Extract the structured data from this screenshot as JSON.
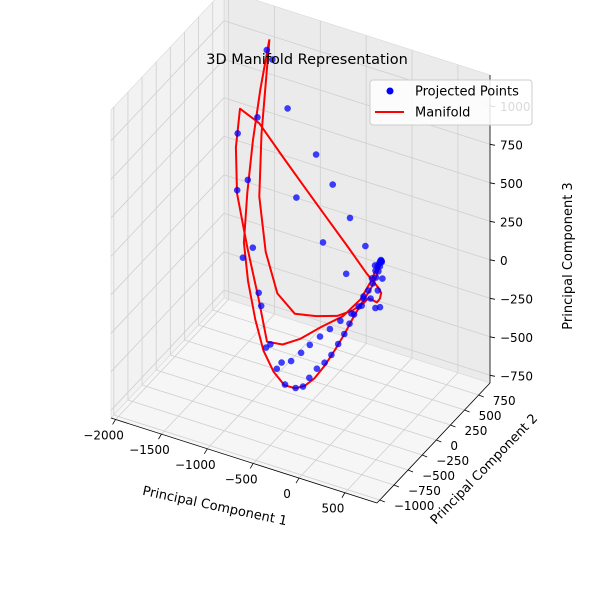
{
  "chart_data": {
    "type": "scatter",
    "projection": "3d",
    "title": "3D Manifold Representation",
    "xlabel": "Principal Component 1",
    "ylabel": "Principal Component 2",
    "zlabel": "Principal Component 3",
    "xlim": [
      -2050,
      850
    ],
    "ylim": [
      -1050,
      950
    ],
    "zlim": [
      -800,
      1200
    ],
    "xticks": [
      "−2000",
      "−1500",
      "−1000",
      "−500",
      "0",
      "500"
    ],
    "xtick_values": [
      -2000,
      -1500,
      -1000,
      -500,
      0,
      500
    ],
    "yticks": [
      "−1000",
      "−750",
      "−500",
      "−250",
      "0",
      "250",
      "500",
      "750"
    ],
    "ytick_values": [
      -1000,
      -750,
      -500,
      -250,
      0,
      250,
      500,
      750
    ],
    "zticks": [
      "−750",
      "−500",
      "−250",
      "0",
      "250",
      "500",
      "750",
      "1000"
    ],
    "ztick_values": [
      -750,
      -500,
      -250,
      0,
      250,
      500,
      750,
      1000
    ],
    "grid": true,
    "legend_position": "top-right",
    "series": [
      {
        "name": "Projected Points",
        "kind": "scatter",
        "color": "#0000ff",
        "points": [
          [
            -1460,
            750,
            1000
          ],
          [
            -1400,
            750,
            950
          ],
          [
            -1470,
            600,
            620
          ],
          [
            -1630,
            510,
            520
          ],
          [
            -1470,
            430,
            280
          ],
          [
            -1480,
            360,
            -200
          ],
          [
            -1290,
            330,
            -380
          ],
          [
            -1160,
            250,
            -680
          ],
          [
            -1000,
            180,
            -760
          ],
          [
            -880,
            130,
            -820
          ],
          [
            -740,
            90,
            -800
          ],
          [
            -640,
            60,
            -760
          ],
          [
            -560,
            40,
            -680
          ],
          [
            -470,
            30,
            -600
          ],
          [
            -380,
            20,
            -540
          ],
          [
            -300,
            10,
            -470
          ],
          [
            -220,
            0,
            -380
          ],
          [
            -150,
            -5,
            -300
          ],
          [
            -90,
            -10,
            -220
          ],
          [
            -40,
            -10,
            -150
          ],
          [
            10,
            -10,
            -90
          ],
          [
            60,
            -5,
            -30
          ],
          [
            110,
            0,
            30
          ],
          [
            150,
            10,
            80
          ],
          [
            180,
            20,
            120
          ],
          [
            200,
            30,
            160
          ],
          [
            210,
            40,
            190
          ],
          [
            215,
            60,
            210
          ],
          [
            205,
            80,
            205
          ],
          [
            190,
            100,
            200
          ],
          [
            175,
            115,
            195
          ],
          [
            160,
            125,
            180
          ],
          [
            145,
            130,
            160
          ],
          [
            130,
            130,
            140
          ],
          [
            110,
            125,
            110
          ],
          [
            80,
            110,
            60
          ],
          [
            -1660,
            550,
            130
          ],
          [
            -1440,
            470,
            -170
          ],
          [
            -1300,
            390,
            -490
          ],
          [
            -1150,
            310,
            -680
          ],
          [
            -960,
            200,
            -720
          ],
          [
            -820,
            140,
            -660
          ],
          [
            -680,
            90,
            -560
          ],
          [
            -560,
            50,
            -470
          ],
          [
            -430,
            20,
            -380
          ],
          [
            -310,
            0,
            -300
          ],
          [
            -190,
            -10,
            -220
          ],
          [
            -70,
            -10,
            -150
          ],
          [
            40,
            -5,
            -80
          ],
          [
            130,
            5,
            -20
          ],
          [
            200,
            20,
            40
          ],
          [
            -1190,
            680,
            700
          ],
          [
            -830,
            600,
            500
          ],
          [
            -600,
            520,
            380
          ],
          [
            -350,
            420,
            250
          ],
          [
            -120,
            320,
            150
          ],
          [
            40,
            230,
            90
          ],
          [
            170,
            150,
            60
          ],
          [
            -1020,
            560,
            200
          ],
          [
            -650,
            430,
            30
          ],
          [
            -330,
            320,
            -70
          ],
          [
            -80,
            220,
            -130
          ],
          [
            100,
            140,
            -140
          ],
          [
            180,
            90,
            -100
          ]
        ]
      },
      {
        "name": "Manifold",
        "kind": "line",
        "color": "#ff0000",
        "points": [
          [
            -1450,
            780,
            1060
          ],
          [
            -1470,
            650,
            780
          ],
          [
            -1470,
            520,
            500
          ],
          [
            -1470,
            420,
            200
          ],
          [
            -1470,
            360,
            -100
          ],
          [
            -1400,
            320,
            -320
          ],
          [
            -1290,
            270,
            -530
          ],
          [
            -1170,
            220,
            -690
          ],
          [
            -1030,
            170,
            -780
          ],
          [
            -880,
            120,
            -820
          ],
          [
            -740,
            85,
            -800
          ],
          [
            -620,
            55,
            -750
          ],
          [
            -500,
            35,
            -670
          ],
          [
            -380,
            20,
            -560
          ],
          [
            -260,
            5,
            -430
          ],
          [
            -140,
            -5,
            -290
          ],
          [
            -40,
            -10,
            -160
          ],
          [
            50,
            -5,
            -50
          ],
          [
            130,
            5,
            40
          ],
          [
            180,
            20,
            120
          ],
          [
            205,
            45,
            190
          ],
          [
            210,
            75,
            210
          ],
          [
            190,
            105,
            200
          ],
          [
            160,
            125,
            175
          ],
          [
            120,
            130,
            130
          ],
          [
            70,
            110,
            40
          ],
          [
            -20,
            70,
            -80
          ],
          [
            -180,
            20,
            -200
          ],
          [
            -400,
            -10,
            -300
          ],
          [
            -650,
            30,
            -440
          ],
          [
            -900,
            120,
            -560
          ],
          [
            -1150,
            250,
            -640
          ],
          [
            -1320,
            380,
            -450
          ],
          [
            -1500,
            470,
            -180
          ],
          [
            -1650,
            530,
            120
          ],
          [
            -1680,
            560,
            400
          ],
          [
            -1660,
            600,
            640
          ],
          [
            -1480,
            650,
            560
          ],
          [
            -1200,
            600,
            420
          ],
          [
            -900,
            520,
            300
          ],
          [
            -600,
            420,
            200
          ],
          [
            -300,
            310,
            110
          ],
          [
            -40,
            200,
            40
          ],
          [
            140,
            120,
            10
          ],
          [
            200,
            80,
            0
          ],
          [
            210,
            40,
            -20
          ],
          [
            190,
            20,
            -40
          ],
          [
            150,
            10,
            -30
          ],
          [
            110,
            0,
            -20
          ],
          [
            60,
            -5,
            -60
          ],
          [
            -60,
            -5,
            -130
          ],
          [
            -230,
            0,
            -200
          ],
          [
            -480,
            30,
            -260
          ],
          [
            -760,
            110,
            -330
          ],
          [
            -1030,
            240,
            -300
          ],
          [
            -1250,
            390,
            -130
          ],
          [
            -1400,
            520,
            150
          ],
          [
            -1450,
            640,
            500
          ],
          [
            -1450,
            780,
            1060
          ]
        ]
      }
    ]
  }
}
